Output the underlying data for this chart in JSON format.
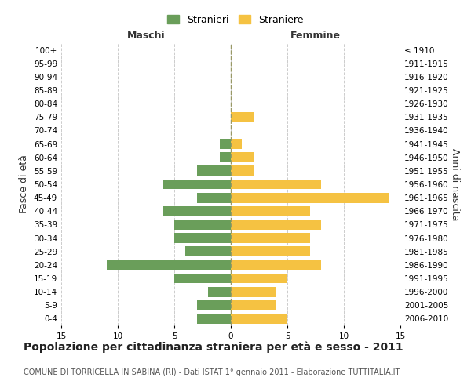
{
  "age_groups": [
    "0-4",
    "5-9",
    "10-14",
    "15-19",
    "20-24",
    "25-29",
    "30-34",
    "35-39",
    "40-44",
    "45-49",
    "50-54",
    "55-59",
    "60-64",
    "65-69",
    "70-74",
    "75-79",
    "80-84",
    "85-89",
    "90-94",
    "95-99",
    "100+"
  ],
  "birth_years": [
    "2006-2010",
    "2001-2005",
    "1996-2000",
    "1991-1995",
    "1986-1990",
    "1981-1985",
    "1976-1980",
    "1971-1975",
    "1966-1970",
    "1961-1965",
    "1956-1960",
    "1951-1955",
    "1946-1950",
    "1941-1945",
    "1936-1940",
    "1931-1935",
    "1926-1930",
    "1921-1925",
    "1916-1920",
    "1911-1915",
    "≤ 1910"
  ],
  "maschi": [
    3,
    3,
    2,
    5,
    11,
    4,
    5,
    5,
    6,
    3,
    6,
    3,
    1,
    1,
    0,
    0,
    0,
    0,
    0,
    0,
    0
  ],
  "femmine": [
    5,
    4,
    4,
    5,
    8,
    7,
    7,
    8,
    7,
    14,
    8,
    2,
    2,
    1,
    0,
    2,
    0,
    0,
    0,
    0,
    0
  ],
  "male_color": "#6a9e5a",
  "female_color": "#f5c242",
  "background_color": "#ffffff",
  "grid_color": "#cccccc",
  "bar_height": 0.75,
  "xlim": 15,
  "title": "Popolazione per cittadinanza straniera per età e sesso - 2011",
  "subtitle": "COMUNE DI TORRICELLA IN SABINA (RI) - Dati ISTAT 1° gennaio 2011 - Elaborazione TUTTITALIA.IT",
  "xlabel_left": "Maschi",
  "xlabel_right": "Femmine",
  "ylabel_left": "Fasce di età",
  "ylabel_right": "Anni di nascita",
  "legend_male": "Stranieri",
  "legend_female": "Straniere",
  "centerline_color": "#999966",
  "tick_fontsize": 7.5,
  "label_fontsize": 9,
  "title_fontsize": 10,
  "subtitle_fontsize": 7
}
